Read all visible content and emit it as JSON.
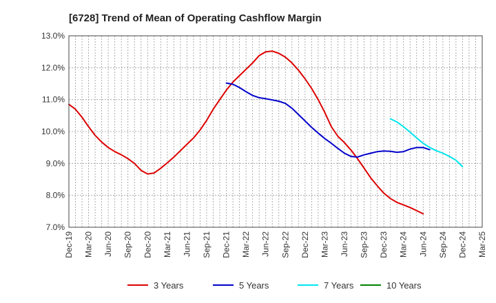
{
  "chart_data": {
    "type": "line",
    "title": "[6728]  Trend of Mean of Operating Cashflow Margin",
    "xlabel": "",
    "ylabel": "",
    "ylim": [
      7.0,
      13.0
    ],
    "yticks": [
      "7.0%",
      "8.0%",
      "9.0%",
      "10.0%",
      "11.0%",
      "12.0%",
      "13.0%"
    ],
    "yticks_values": [
      7,
      8,
      9,
      10,
      11,
      12,
      13
    ],
    "x_categories": [
      "Dec-19",
      "Mar-20",
      "Jun-20",
      "Sep-20",
      "Dec-20",
      "Mar-21",
      "Jun-21",
      "Sep-21",
      "Dec-21",
      "Mar-22",
      "Jun-22",
      "Sep-22",
      "Dec-22",
      "Mar-23",
      "Jun-23",
      "Sep-23",
      "Dec-23",
      "Mar-24",
      "Jun-24",
      "Sep-24",
      "Dec-24",
      "Mar-25"
    ],
    "grid": true,
    "legend_position": "bottom",
    "series": [
      {
        "name": "3 Years",
        "color": "#dd0000",
        "start_index": 0,
        "values": [
          10.85,
          10.7,
          10.45,
          10.15,
          9.88,
          9.67,
          9.5,
          9.37,
          9.27,
          9.15,
          9.0,
          8.78,
          8.67,
          8.7,
          8.85,
          9.02,
          9.2,
          9.4,
          9.6,
          9.8,
          10.05,
          10.35,
          10.7,
          11.0,
          11.3,
          11.55,
          11.75,
          11.95,
          12.15,
          12.38,
          12.5,
          12.52,
          12.45,
          12.33,
          12.15,
          11.92,
          11.65,
          11.35,
          11.0,
          10.6,
          10.15,
          9.85,
          9.65,
          9.42,
          9.15,
          8.85,
          8.55,
          8.3,
          8.07,
          7.9,
          7.78,
          7.7,
          7.62,
          7.52,
          7.42
        ]
      },
      {
        "name": "5 Years",
        "color": "#0000cc",
        "start_index": 24,
        "values": [
          11.52,
          11.48,
          11.38,
          11.25,
          11.13,
          11.06,
          11.03,
          10.99,
          10.95,
          10.88,
          10.73,
          10.53,
          10.33,
          10.13,
          9.95,
          9.78,
          9.63,
          9.47,
          9.32,
          9.22,
          9.2,
          9.27,
          9.32,
          9.37,
          9.39,
          9.38,
          9.35,
          9.37,
          9.45,
          9.5,
          9.5,
          9.43
        ]
      },
      {
        "name": "7 Years",
        "color": "#00e5ee",
        "start_index": 49,
        "values": [
          10.4,
          10.3,
          10.15,
          9.98,
          9.8,
          9.63,
          9.5,
          9.4,
          9.32,
          9.22,
          9.1,
          8.9
        ]
      },
      {
        "name": "10 Years",
        "color": "#008000",
        "start_index": 0,
        "values": []
      }
    ]
  }
}
